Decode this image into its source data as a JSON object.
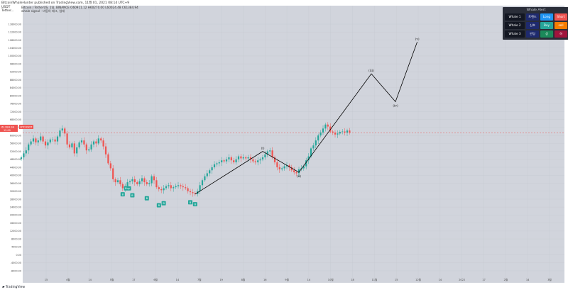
{
  "header": {
    "published": "BitcoinWhaleHunter published on TradingView.com, 11월 01, 2021 08:14 UTC+9",
    "axis_unit_top": "USDT",
    "axis_unit_sub": "Tether...",
    "legend_line1": "Bitcoin / TetherUS, 1일, BINANCE   O60911.12  H60270.00  L60024.48  C61384.94",
    "legend_line2": "whale signal  · 비동의 태그, 업데"
  },
  "price_tag": {
    "value": "61384.94",
    "sub": "12:00",
    "symbol": "BTCUSDT"
  },
  "whale_table": {
    "title": "Whale Alert",
    "rows": [
      {
        "label": "Whale 1",
        "kr": "트렌드",
        "a": "Long",
        "b": "Short"
      },
      {
        "label": "Whale 2",
        "kr": "신호",
        "a": "Buy",
        "b": "sell"
      },
      {
        "label": "Whale 3",
        "kr": "안딩",
        "a": "상",
        "b": "하"
      }
    ]
  },
  "colors": {
    "up": "#26a69a",
    "down": "#ef5350",
    "plot_bg": "#d1d4dc",
    "wave_line": "#000000",
    "badge": "#26a69a",
    "price_line": "#ef5350"
  },
  "footer": {
    "brand": "TradingView"
  },
  "chart_data": {
    "type": "candlestick",
    "y_ticks": [
      "116000.00",
      "112000.00",
      "108000.00",
      "104000.00",
      "100000.00",
      "96000.00",
      "92000.00",
      "88000.00",
      "84000.00",
      "80000.00",
      "76000.00",
      "72000.00",
      "68000.00",
      "64000.00",
      "60000.00",
      "56000.00",
      "52000.00",
      "48000.00",
      "44000.00",
      "40000.00",
      "36000.00",
      "32000.00",
      "28000.00",
      "24000.00",
      "20000.00",
      "16000.00",
      "12000.00",
      "8000.00",
      "4000.00",
      "0.00",
      "-4000.00",
      "-8000.00"
    ],
    "ylim": [
      -8000,
      116000
    ],
    "x_ticks": [
      "15",
      "4월",
      "14",
      "5월",
      "17",
      "6월",
      "14",
      "7월",
      "19",
      "8월",
      "16",
      "9월",
      "14",
      "10월",
      "18",
      "11월",
      "15",
      "12월",
      "14",
      "2022",
      "17",
      "2월",
      "14",
      "3월"
    ],
    "close_series": [
      49000,
      51000,
      52500,
      55500,
      57000,
      58500,
      56500,
      57500,
      59500,
      57000,
      55000,
      56500,
      58000,
      58000,
      57000,
      59500,
      62500,
      63500,
      61000,
      55500,
      54000,
      56000,
      51000,
      54000,
      56500,
      57500,
      55500,
      52500,
      53000,
      55500,
      57000,
      56000,
      58500,
      57500,
      54500,
      50500,
      46000,
      43500,
      38000,
      36500,
      37500,
      35500,
      33500,
      34500,
      36500,
      37000,
      38000,
      36500,
      35500,
      37000,
      38500,
      36500,
      35500,
      36000,
      39500,
      37500,
      34000,
      33000,
      32500,
      33500,
      34500,
      35000,
      33500,
      34000,
      34500,
      35000,
      34500,
      34000,
      33500,
      32000,
      31500,
      31000,
      30500,
      32000,
      35000,
      37500,
      39500,
      41000,
      42500,
      44000,
      45500,
      46000,
      46500,
      47500,
      47000,
      48000,
      49000,
      47500,
      46500,
      48000,
      49500,
      48500,
      49000,
      48500,
      49000,
      48000,
      47000,
      46500,
      47500,
      48000,
      49000,
      50500,
      52000,
      52500,
      49000,
      46500,
      44000,
      43000,
      43500,
      44500,
      45000,
      44000,
      42500,
      41500,
      41000,
      43000,
      43500,
      44500,
      47500,
      49500,
      53500,
      55000,
      57500,
      60000,
      61500,
      63500,
      65500,
      64500,
      62000,
      61500,
      60500,
      61000,
      61800,
      62000,
      61500,
      62500,
      61384.94
    ],
    "wave_path": [
      {
        "i": 72,
        "y": 30500
      },
      {
        "i": 100,
        "y": 52000,
        "label": "(i)"
      },
      {
        "i": 115,
        "y": 41500,
        "label": "(ii)"
      },
      {
        "i": 145,
        "y": 91000,
        "label": "(iii)"
      },
      {
        "i": 155,
        "y": 77000,
        "label": "(iv)"
      },
      {
        "i": 164,
        "y": 107000,
        "label": "(v)"
      }
    ],
    "signals": [
      {
        "i": 42,
        "y": 31500,
        "text": "B"
      },
      {
        "i": 46,
        "y": 31000,
        "text": "B"
      },
      {
        "i": 52,
        "y": 29500,
        "text": "B"
      },
      {
        "i": 57,
        "y": 26000,
        "text": "B"
      },
      {
        "i": 59,
        "y": 27000,
        "text": "B"
      },
      {
        "i": 70,
        "y": 27500,
        "text": "B"
      },
      {
        "i": 72,
        "y": 26500,
        "text": "B"
      },
      {
        "i": 44,
        "y": 34500,
        "text": "Buy"
      }
    ]
  }
}
